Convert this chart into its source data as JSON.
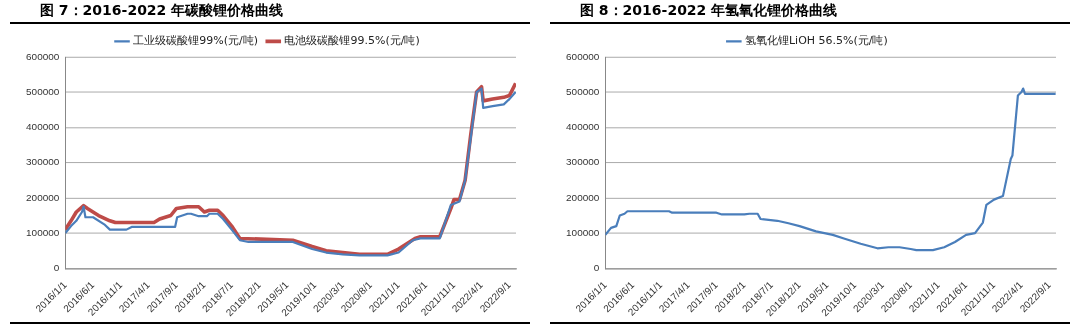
{
  "chart_data": [
    {
      "type": "line",
      "title": "图 7：2016-2022 年碳酸锂价格曲线",
      "legend": "top",
      "grid": "y",
      "xlim": [
        "2016-01-01",
        "2022-10-07"
      ],
      "xticks": [
        {
          "value": "2016-01-01",
          "label": "2016/1/1"
        },
        {
          "value": "2016-06-01",
          "label": "2016/6/1"
        },
        {
          "value": "2016-11-01",
          "label": "2016/11/1"
        },
        {
          "value": "2017-04-01",
          "label": "2017/4/1"
        },
        {
          "value": "2017-09-01",
          "label": "2017/9/1"
        },
        {
          "value": "2018-02-01",
          "label": "2018/2/1"
        },
        {
          "value": "2018-07-01",
          "label": "2018/7/1"
        },
        {
          "value": "2018-12-01",
          "label": "2018/12/1"
        },
        {
          "value": "2019-05-01",
          "label": "2019/5/1"
        },
        {
          "value": "2019-10-01",
          "label": "2019/10/1"
        },
        {
          "value": "2020-03-01",
          "label": "2020/3/1"
        },
        {
          "value": "2020-08-01",
          "label": "2020/8/1"
        },
        {
          "value": "2021-01-01",
          "label": "2021/1/1"
        },
        {
          "value": "2021-06-01",
          "label": "2021/6/1"
        },
        {
          "value": "2021-11-01",
          "label": "2021/11/1"
        },
        {
          "value": "2022-04-01",
          "label": "2022/4/1"
        },
        {
          "value": "2022-09-01",
          "label": "2022/9/1"
        }
      ],
      "ylim": [
        0,
        600000
      ],
      "yticks": [
        0,
        100000,
        200000,
        300000,
        400000,
        500000,
        600000
      ],
      "series": [
        {
          "name": "工业级碳酸锂99%(元/吨)",
          "color": "#4a7ebb",
          "x": [
            "2016-01-01",
            "2016-02-01",
            "2016-03-01",
            "2016-04-01",
            "2016-04-10",
            "2016-04-20",
            "2016-06-01",
            "2016-08-01",
            "2016-09-01",
            "2016-12-01",
            "2017-01-01",
            "2017-08-25",
            "2017-09-05",
            "2017-11-01",
            "2017-11-20",
            "2018-01-01",
            "2018-02-15",
            "2018-03-01",
            "2018-04-15",
            "2018-05-15",
            "2018-07-01",
            "2018-08-15",
            "2018-10-01",
            "2019-06-01",
            "2019-09-15",
            "2019-12-01",
            "2020-03-01",
            "2020-06-01",
            "2020-11-01",
            "2021-01-01",
            "2021-03-20",
            "2021-05-01",
            "2021-08-15",
            "2021-10-15",
            "2021-12-01",
            "2022-01-01",
            "2022-02-01",
            "2022-03-05",
            "2022-04-01",
            "2022-04-10",
            "2022-06-01",
            "2022-08-01",
            "2022-09-01",
            "2022-10-05"
          ],
          "values": [
            100000,
            120000,
            135000,
            160000,
            175000,
            145000,
            145000,
            125000,
            110000,
            110000,
            118000,
            118000,
            145000,
            155000,
            155000,
            148000,
            148000,
            155000,
            155000,
            140000,
            110000,
            80000,
            75000,
            75000,
            55000,
            45000,
            40000,
            37000,
            37000,
            45000,
            80000,
            85000,
            85000,
            180000,
            190000,
            250000,
            370000,
            500000,
            510000,
            455000,
            460000,
            465000,
            480000,
            500000
          ]
        },
        {
          "name": "电池级碳酸锂99.5%(元/吨)",
          "color": "#be4b48",
          "x": [
            "2016-01-01",
            "2016-02-01",
            "2016-03-01",
            "2016-04-10",
            "2016-05-01",
            "2016-07-01",
            "2016-09-01",
            "2016-10-01",
            "2017-05-01",
            "2017-06-01",
            "2017-08-01",
            "2017-09-01",
            "2017-11-01",
            "2018-01-01",
            "2018-02-01",
            "2018-03-01",
            "2018-04-15",
            "2018-05-15",
            "2018-07-01",
            "2018-08-15",
            "2019-06-01",
            "2019-09-15",
            "2019-12-01",
            "2020-03-01",
            "2020-06-01",
            "2020-11-01",
            "2021-01-01",
            "2021-04-01",
            "2021-05-01",
            "2021-08-15",
            "2021-10-15",
            "2021-11-01",
            "2021-12-01",
            "2022-01-01",
            "2022-02-01",
            "2022-03-05",
            "2022-04-01",
            "2022-04-10",
            "2022-06-01",
            "2022-08-01",
            "2022-09-01",
            "2022-10-05"
          ],
          "values": [
            110000,
            135000,
            160000,
            178000,
            170000,
            150000,
            135000,
            130000,
            130000,
            140000,
            150000,
            170000,
            175000,
            175000,
            160000,
            165000,
            165000,
            150000,
            120000,
            85000,
            80000,
            62000,
            50000,
            45000,
            40000,
            40000,
            55000,
            85000,
            90000,
            90000,
            170000,
            195000,
            195000,
            250000,
            380000,
            500000,
            515000,
            475000,
            480000,
            485000,
            490000,
            525000
          ]
        }
      ]
    },
    {
      "type": "line",
      "title": "图 8：2016-2022 年氢氧化锂价格曲线",
      "legend": "top",
      "grid": "y",
      "xlim": [
        "2016-01-01",
        "2022-10-07"
      ],
      "xticks": [
        {
          "value": "2016-01-01",
          "label": "2016/1/1"
        },
        {
          "value": "2016-06-01",
          "label": "2016/6/1"
        },
        {
          "value": "2016-11-01",
          "label": "2016/11/1"
        },
        {
          "value": "2017-04-01",
          "label": "2017/4/1"
        },
        {
          "value": "2017-09-01",
          "label": "2017/9/1"
        },
        {
          "value": "2018-02-01",
          "label": "2018/2/1"
        },
        {
          "value": "2018-07-01",
          "label": "2018/7/1"
        },
        {
          "value": "2018-12-01",
          "label": "2018/12/1"
        },
        {
          "value": "2019-05-01",
          "label": "2019/5/1"
        },
        {
          "value": "2019-10-01",
          "label": "2019/10/1"
        },
        {
          "value": "2020-03-01",
          "label": "2020/3/1"
        },
        {
          "value": "2020-08-01",
          "label": "2020/8/1"
        },
        {
          "value": "2021-01-01",
          "label": "2021/1/1"
        },
        {
          "value": "2021-06-01",
          "label": "2021/6/1"
        },
        {
          "value": "2021-11-01",
          "label": "2021/11/1"
        },
        {
          "value": "2022-04-01",
          "label": "2022/4/1"
        },
        {
          "value": "2022-09-01",
          "label": "2022/9/1"
        }
      ],
      "ylim": [
        0,
        600000
      ],
      "yticks": [
        0,
        100000,
        200000,
        300000,
        400000,
        500000,
        600000
      ],
      "series": [
        {
          "name": "氢氧化锂LiOH 56.5%(元/吨)",
          "color": "#4a7ebb",
          "x": [
            "2016-01-01",
            "2016-02-01",
            "2016-03-01",
            "2016-03-20",
            "2016-04-15",
            "2016-05-01",
            "2016-12-15",
            "2017-01-01",
            "2017-09-01",
            "2017-10-01",
            "2018-02-01",
            "2018-03-01",
            "2018-04-15",
            "2018-05-01",
            "2018-08-01",
            "2018-10-01",
            "2018-12-01",
            "2019-03-01",
            "2019-06-01",
            "2019-08-01",
            "2019-11-01",
            "2020-02-01",
            "2020-04-01",
            "2020-06-01",
            "2020-08-01",
            "2020-09-01",
            "2020-12-01",
            "2021-02-01",
            "2021-04-01",
            "2021-06-01",
            "2021-07-20",
            "2021-09-01",
            "2021-09-20",
            "2021-11-01",
            "2021-12-20",
            "2022-02-01",
            "2022-02-10",
            "2022-03-12",
            "2022-04-01",
            "2022-04-10",
            "2022-04-20",
            "2022-10-05"
          ],
          "values": [
            95000,
            115000,
            120000,
            150000,
            155000,
            162000,
            162000,
            158000,
            158000,
            153000,
            153000,
            155000,
            155000,
            140000,
            135000,
            128000,
            120000,
            105000,
            95000,
            85000,
            70000,
            57000,
            60000,
            60000,
            55000,
            52000,
            52000,
            60000,
            75000,
            95000,
            100000,
            130000,
            180000,
            195000,
            205000,
            310000,
            320000,
            490000,
            500000,
            510000,
            495000,
            495000
          ]
        }
      ]
    }
  ]
}
